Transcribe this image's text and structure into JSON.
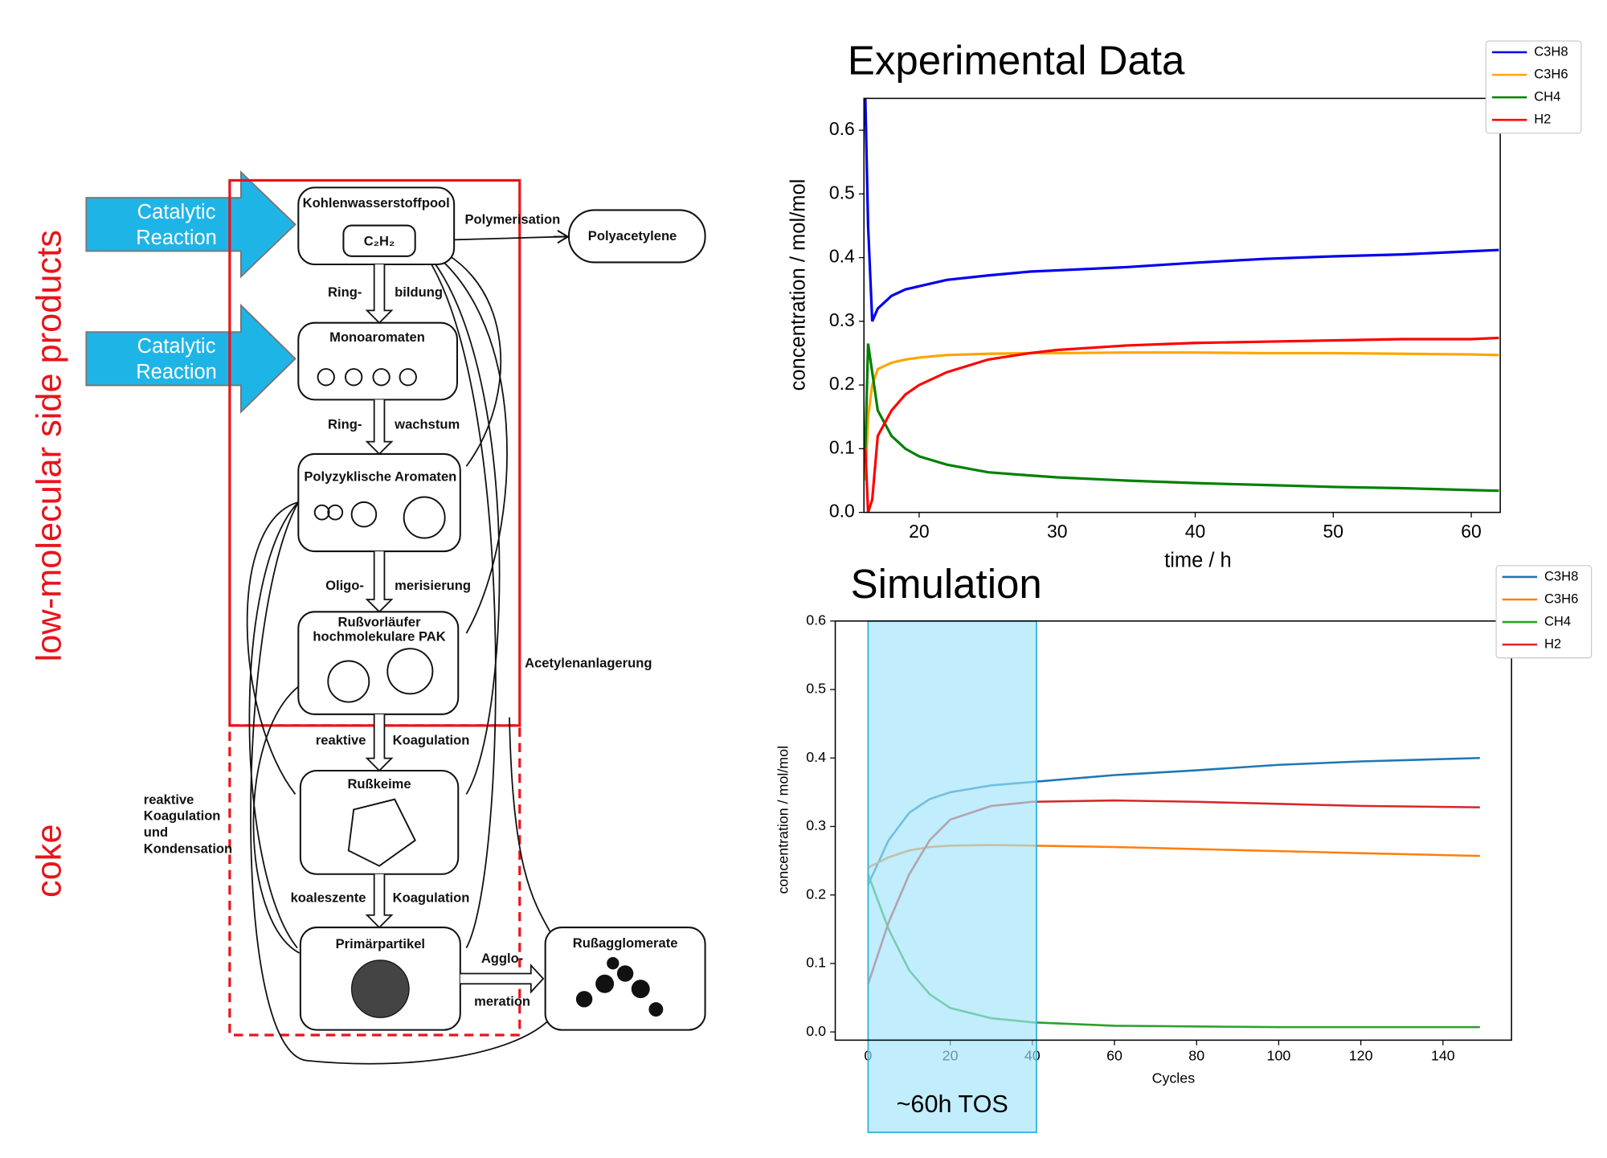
{
  "diagram": {
    "side_labels": [
      "low-molecular side products",
      "coke"
    ],
    "inputs": [
      {
        "lines": [
          "Catalytic",
          "Reaction"
        ]
      },
      {
        "lines": [
          "Catalytic",
          "Reaction"
        ]
      }
    ],
    "nodes": [
      {
        "lines": [
          "Kohlenwasserstoffpool"
        ]
      },
      {
        "lines": [
          "C₂H₂"
        ]
      },
      {
        "lines": [
          "Polyacetylene"
        ]
      },
      {
        "lines": [
          "Monoaromaten"
        ]
      },
      {
        "lines": [
          "Polyzyklische Aromaten"
        ]
      },
      {
        "lines": [
          "Rußvorläufer",
          "hochmolekulare PAK"
        ]
      },
      {
        "lines": [
          "Rußkeime"
        ]
      },
      {
        "lines": [
          "Primärpartikel"
        ]
      },
      {
        "lines": [
          "Rußagglomerate"
        ]
      }
    ],
    "edge_labels": [
      "Polymerisation",
      "Ring-",
      "bildung",
      "Ring-",
      "wachstum",
      "Oligo-",
      "merisierung",
      "reaktive",
      "Koagulation",
      "koaleszente",
      "Koagulation",
      "Agglo-",
      "meration",
      "Acetylenanlagerung"
    ],
    "side_note": [
      "reaktive",
      "Koagulation",
      "und",
      "Kondensation"
    ]
  },
  "chart_data": [
    {
      "type": "line",
      "title": "Experimental Data",
      "x_label": "time / h",
      "y_label": "concentration / mol/mol",
      "x": [
        16.1,
        16.3,
        16.6,
        17,
        18,
        19,
        20,
        22,
        25,
        28,
        30,
        35,
        40,
        45,
        50,
        55,
        60,
        62
      ],
      "series": [
        {
          "name": "C3H8",
          "color": "#0000ee",
          "values": [
            0.65,
            0.45,
            0.3,
            0.32,
            0.34,
            0.35,
            0.355,
            0.365,
            0.372,
            0.378,
            0.38,
            0.385,
            0.392,
            0.398,
            0.402,
            0.405,
            0.41,
            0.412
          ]
        },
        {
          "name": "C3H6",
          "color": "#ffa500",
          "values": [
            0.05,
            0.15,
            0.2,
            0.225,
            0.235,
            0.24,
            0.243,
            0.247,
            0.249,
            0.25,
            0.25,
            0.251,
            0.251,
            0.25,
            0.25,
            0.249,
            0.248,
            0.247
          ]
        },
        {
          "name": "CH4",
          "color": "#008000",
          "values": [
            0.1,
            0.265,
            0.22,
            0.16,
            0.12,
            0.1,
            0.088,
            0.075,
            0.063,
            0.058,
            0.055,
            0.05,
            0.046,
            0.043,
            0.04,
            0.038,
            0.035,
            0.034
          ]
        },
        {
          "name": "H2",
          "color": "#ff0000",
          "values": [
            0.1,
            0.0,
            0.02,
            0.12,
            0.16,
            0.185,
            0.2,
            0.22,
            0.24,
            0.25,
            0.255,
            0.262,
            0.266,
            0.268,
            0.27,
            0.272,
            0.272,
            0.274
          ]
        }
      ],
      "xlim": [
        16,
        62.1
      ],
      "ylim": [
        0,
        0.65
      ],
      "xticks": [
        20,
        30,
        40,
        50,
        60
      ],
      "yticks": [
        {
          "value": 0,
          "label": "0.0"
        },
        0.1,
        0.2,
        0.3,
        0.4,
        0.5,
        0.6
      ],
      "legend": "upper right"
    },
    {
      "type": "line",
      "title": "Simulation",
      "x_label": "Cycles",
      "y_label": "concentration / mol/mol",
      "x": [
        0,
        5,
        10,
        15,
        20,
        30,
        40,
        60,
        80,
        100,
        120,
        149
      ],
      "series": [
        {
          "name": "C3H8",
          "color": "#1f77b4",
          "values": [
            0.215,
            0.28,
            0.32,
            0.34,
            0.35,
            0.36,
            0.365,
            0.375,
            0.382,
            0.39,
            0.395,
            0.4
          ]
        },
        {
          "name": "C3H6",
          "color": "#ff7f0e",
          "values": [
            0.24,
            0.255,
            0.265,
            0.27,
            0.272,
            0.273,
            0.272,
            0.27,
            0.267,
            0.264,
            0.261,
            0.257
          ]
        },
        {
          "name": "CH4",
          "color": "#2ca02c",
          "values": [
            0.23,
            0.15,
            0.09,
            0.055,
            0.035,
            0.02,
            0.014,
            0.009,
            0.008,
            0.007,
            0.007,
            0.007
          ]
        },
        {
          "name": "H2",
          "color": "#d62728",
          "values": [
            0.07,
            0.16,
            0.23,
            0.28,
            0.31,
            0.33,
            0.336,
            0.338,
            0.336,
            0.333,
            0.33,
            0.328
          ]
        }
      ],
      "xlim": [
        -8,
        156.7
      ],
      "ylim": [
        -0.012,
        0.6
      ],
      "xticks": [
        0,
        20,
        40,
        60,
        80,
        100,
        120,
        140
      ],
      "yticks": [
        {
          "value": 0,
          "label": "0.0"
        },
        0.1,
        0.2,
        0.3,
        0.4,
        0.5,
        0.6
      ],
      "highlight": {
        "x": [
          0,
          41
        ],
        "label": "~60h TOS"
      },
      "legend": "upper right"
    }
  ]
}
